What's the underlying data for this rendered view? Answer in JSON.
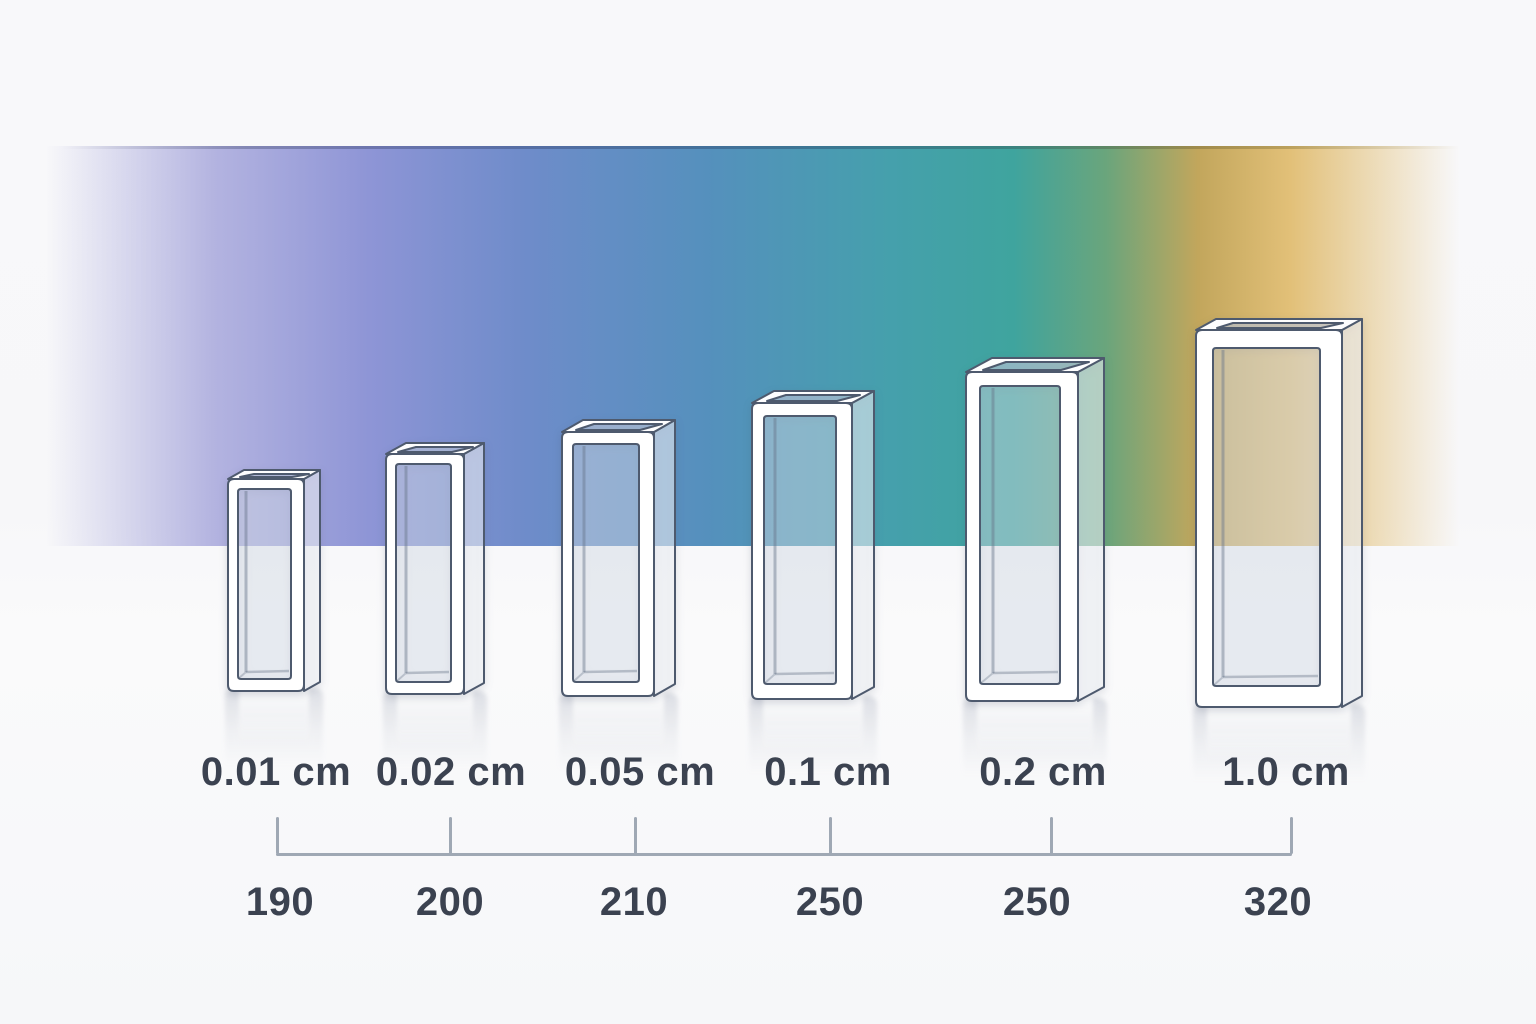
{
  "diagram": {
    "subject": "cuvette-path-length-vs-uv-cutoff",
    "cuvettes": [
      {
        "path_length": "0.01 cm",
        "uv_cutoff_nm": "190"
      },
      {
        "path_length": "0.02 cm",
        "uv_cutoff_nm": "200"
      },
      {
        "path_length": "0.05 cm",
        "uv_cutoff_nm": "210"
      },
      {
        "path_length": "0.1 cm",
        "uv_cutoff_nm": "250"
      },
      {
        "path_length": "0.2 cm",
        "uv_cutoff_nm": "250"
      },
      {
        "path_length": "1.0 cm",
        "uv_cutoff_nm": "320"
      }
    ],
    "colors": {
      "spectrum_band": [
        "#b3b3e0",
        "#8e95d6",
        "#6f8cca",
        "#5590bd",
        "#45a0ac",
        "#3fa49e",
        "#6aa57c",
        "#c2a65c",
        "#e2c078"
      ],
      "text": "#3b4250",
      "axis": "#9fa8b4",
      "cuvette_outline": "#4e5a6e",
      "cuvette_glass_fill": "#e0e7f1"
    }
  }
}
